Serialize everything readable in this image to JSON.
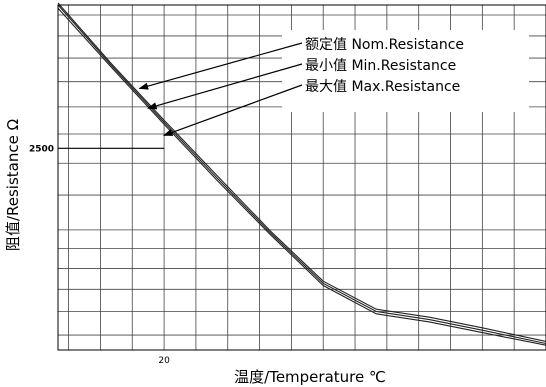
{
  "chart_data": {
    "type": "line",
    "xlabel": "温度/Temperature ℃",
    "ylabel": "阻值/Resistance Ω",
    "x_tick_labels": [
      {
        "x": 20,
        "label": "20"
      }
    ],
    "y_tick_labels": [
      {
        "y": 2500,
        "label": "2500"
      }
    ],
    "x_scale": "linear",
    "y_scale": "log",
    "xlim": [
      10,
      56
    ],
    "ylim": [
      1440,
      3700
    ],
    "grid": true,
    "series": [
      {
        "name": "Min.Resistance",
        "name_cn": "最小值",
        "x": [
          10,
          15,
          20,
          25,
          30,
          35,
          40,
          45,
          50,
          56
        ],
        "y": [
          3667,
          3124,
          2670,
          2290,
          1975,
          1718,
          1590,
          1555,
          1510,
          1459
        ]
      },
      {
        "name": "Nom.Resistance",
        "name_cn": "额定值",
        "x": [
          10,
          15,
          20,
          25,
          30,
          35,
          40,
          45,
          50,
          56
        ],
        "y": [
          3720,
          3155,
          2700,
          2320,
          1995,
          1738,
          1610,
          1575,
          1530,
          1474
        ]
      },
      {
        "name": "Max.Resistance",
        "name_cn": "最大值",
        "x": [
          10,
          15,
          20,
          25,
          30,
          35,
          40,
          45,
          50,
          56
        ],
        "y": [
          3700,
          3140,
          2685,
          2305,
          1985,
          1728,
          1600,
          1565,
          1520,
          1466
        ]
      }
    ],
    "marker": {
      "x": 20,
      "y": 2500
    },
    "annotations": [
      {
        "label_cn": "额定值",
        "label_en": "Nom.Resistance",
        "points_to": {
          "x": 17.7,
          "y": 2945
        }
      },
      {
        "label_cn": "最小值",
        "label_en": "Min.Resistance",
        "points_to": {
          "x": 18.5,
          "y": 2790
        }
      },
      {
        "label_cn": "最大值",
        "label_en": "Max.Resistance",
        "points_to": {
          "x": 20,
          "y": 2590
        }
      }
    ]
  }
}
